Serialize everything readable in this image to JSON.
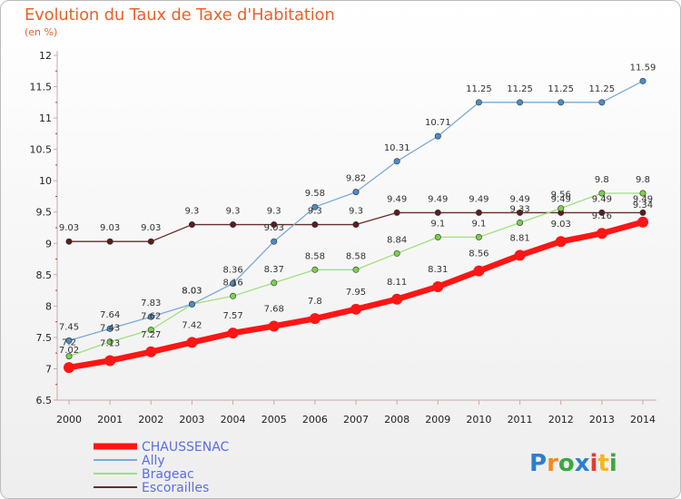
{
  "title": "Evolution du Taux de Taxe d'Habitation",
  "subtitle": "(en %)",
  "logo": "Proxiti",
  "colors": {
    "title": "#e8622b",
    "legend_text": "#5a6ee0"
  },
  "chart_data": {
    "type": "line",
    "title": "Evolution du Taux de Taxe d'Habitation",
    "ylabel": "(en %)",
    "xlabel": "",
    "x": [
      "2000",
      "2001",
      "2002",
      "2003",
      "2004",
      "2005",
      "2006",
      "2007",
      "2008",
      "2009",
      "2010",
      "2011",
      "2012",
      "2013",
      "2014"
    ],
    "ylim": [
      6.5,
      12
    ],
    "yticks": [
      6.5,
      7,
      7.5,
      8,
      8.5,
      9,
      9.5,
      10,
      10.5,
      11,
      11.5,
      12
    ],
    "grid": false,
    "legend": "bottom-left",
    "series": [
      {
        "name": "Escorailles",
        "color": "#6b2b2b",
        "point": "#5a1e1e",
        "width": 1.3,
        "values": [
          9.03,
          9.03,
          9.03,
          9.3,
          9.3,
          9.3,
          9.3,
          9.3,
          9.49,
          9.49,
          9.49,
          9.49,
          9.49,
          9.49,
          9.49
        ]
      },
      {
        "name": "Brageac",
        "color": "#9fe07a",
        "point": "#7ccf4f",
        "width": 1.3,
        "values": [
          7.2,
          7.43,
          7.62,
          8.03,
          8.16,
          8.37,
          8.58,
          8.58,
          8.84,
          9.1,
          9.1,
          9.33,
          9.56,
          9.8,
          9.8
        ]
      },
      {
        "name": "Ally",
        "color": "#7aa9d6",
        "point": "#4a8cc8",
        "width": 1.3,
        "values": [
          7.45,
          7.64,
          7.83,
          8.03,
          8.36,
          9.03,
          9.58,
          9.82,
          10.31,
          10.71,
          11.25,
          11.25,
          11.25,
          11.25,
          11.59
        ]
      },
      {
        "name": "CHAUSSENAC",
        "color": "#ff1515",
        "point": "#ff1515",
        "width": 6.5,
        "values": [
          7.02,
          7.13,
          7.27,
          7.42,
          7.57,
          7.68,
          7.8,
          7.95,
          8.11,
          8.31,
          8.56,
          8.81,
          9.03,
          9.16,
          9.34
        ]
      }
    ],
    "point_labels": [
      {
        "series": "CHAUSSENAC",
        "labels": [
          "7.02",
          "7.13",
          "7.27",
          "7.42",
          "7.57",
          "7.68",
          "7.8",
          "7.95",
          "8.11",
          "8.31",
          "8.56",
          "8.81",
          "9.03",
          "9.16",
          "9.34"
        ]
      },
      {
        "series": "Ally",
        "labels": [
          "7.45",
          "7.64",
          "7.83",
          "8.03",
          "8.36",
          "9.03",
          "9.58",
          "9.82",
          "10.31",
          "10.71",
          "11.25",
          "11.25",
          "11.25",
          "11.25",
          "11.59"
        ]
      },
      {
        "series": "Brageac",
        "labels": [
          "7.2",
          "7.43",
          "7.62",
          "8.03",
          "8.16",
          "8.37",
          "8.58",
          "8.58",
          "8.84",
          "9.1",
          "9.1",
          "9.33",
          "9.56",
          "9.8",
          "9.8"
        ]
      },
      {
        "series": "Escorailles",
        "labels": [
          "9.03",
          "9.03",
          "9.03",
          "9.3",
          "9.3",
          "9.3",
          "9.3",
          "9.3",
          "9.49",
          "9.49",
          "9.49",
          "9.49",
          "9.49",
          "9.49",
          "9.49"
        ]
      }
    ],
    "legend_order": [
      "CHAUSSENAC",
      "Ally",
      "Brageac",
      "Escorailles"
    ]
  }
}
